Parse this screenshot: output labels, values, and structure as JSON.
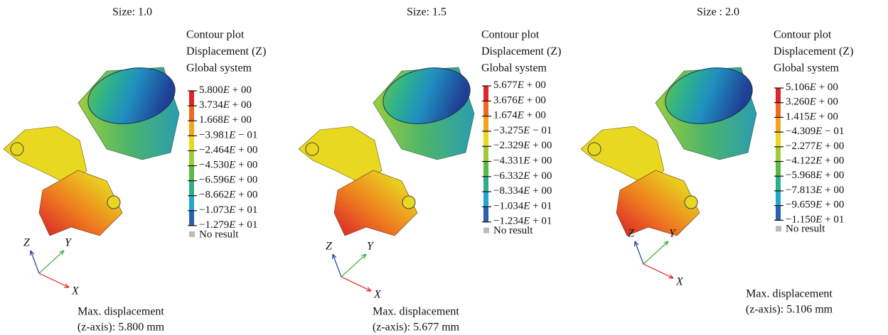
{
  "panels": [
    {
      "size_label": "Size: 1.0",
      "legend_title": [
        "Contour plot",
        "Displacement (Z)",
        "Global system"
      ],
      "legend_labels": [
        "5.800E + 00",
        "3.734E + 00",
        "1.668E + 00",
        "−3.981E − 01",
        "−2.464E + 00",
        "−4.530E + 00",
        "−6.596E + 00",
        "−8.662E + 00",
        "−1.073E + 01",
        "−1.279E + 01"
      ],
      "no_result": "No result",
      "axes": {
        "x": "X",
        "y": "Y",
        "z": "Z"
      },
      "max_displacement": [
        "Max. displacement",
        "(z-axis): 5.800 mm"
      ]
    },
    {
      "size_label": "Size: 1.5",
      "legend_title": [
        "Contour plot",
        "Displacement (Z)",
        "Global system"
      ],
      "legend_labels": [
        "5.677E + 00",
        "3.676E + 00",
        "1.674E + 00",
        "−3.275E − 01",
        "−2.329E + 00",
        "−4.331E + 00",
        "−6.332E + 00",
        "−8.334E + 00",
        "−1.034E + 01",
        "−1.234E + 01"
      ],
      "no_result": "No result",
      "axes": {
        "x": "X",
        "y": "Y",
        "z": "Z"
      },
      "max_displacement": [
        "Max. displacement",
        "(z-axis): 5.677 mm"
      ]
    },
    {
      "size_label": "Size : 2.0",
      "legend_title": [
        "Contour plot",
        "Displacement (Z)",
        "Global system"
      ],
      "legend_labels": [
        "5.106E + 00",
        "3.260E + 00",
        "1.415E + 00",
        "−4.309E − 01",
        "−2.277E + 00",
        "−4.122E + 00",
        "−5.968E + 00",
        "−7.813E + 00",
        "−9.659E + 00",
        "−1.150E + 01"
      ],
      "no_result": "No result",
      "axes": {
        "x": "X",
        "y": "Y",
        "z": "Z"
      },
      "max_displacement": [
        "Max. displacement",
        "(z-axis): 5.106 mm"
      ]
    }
  ]
}
